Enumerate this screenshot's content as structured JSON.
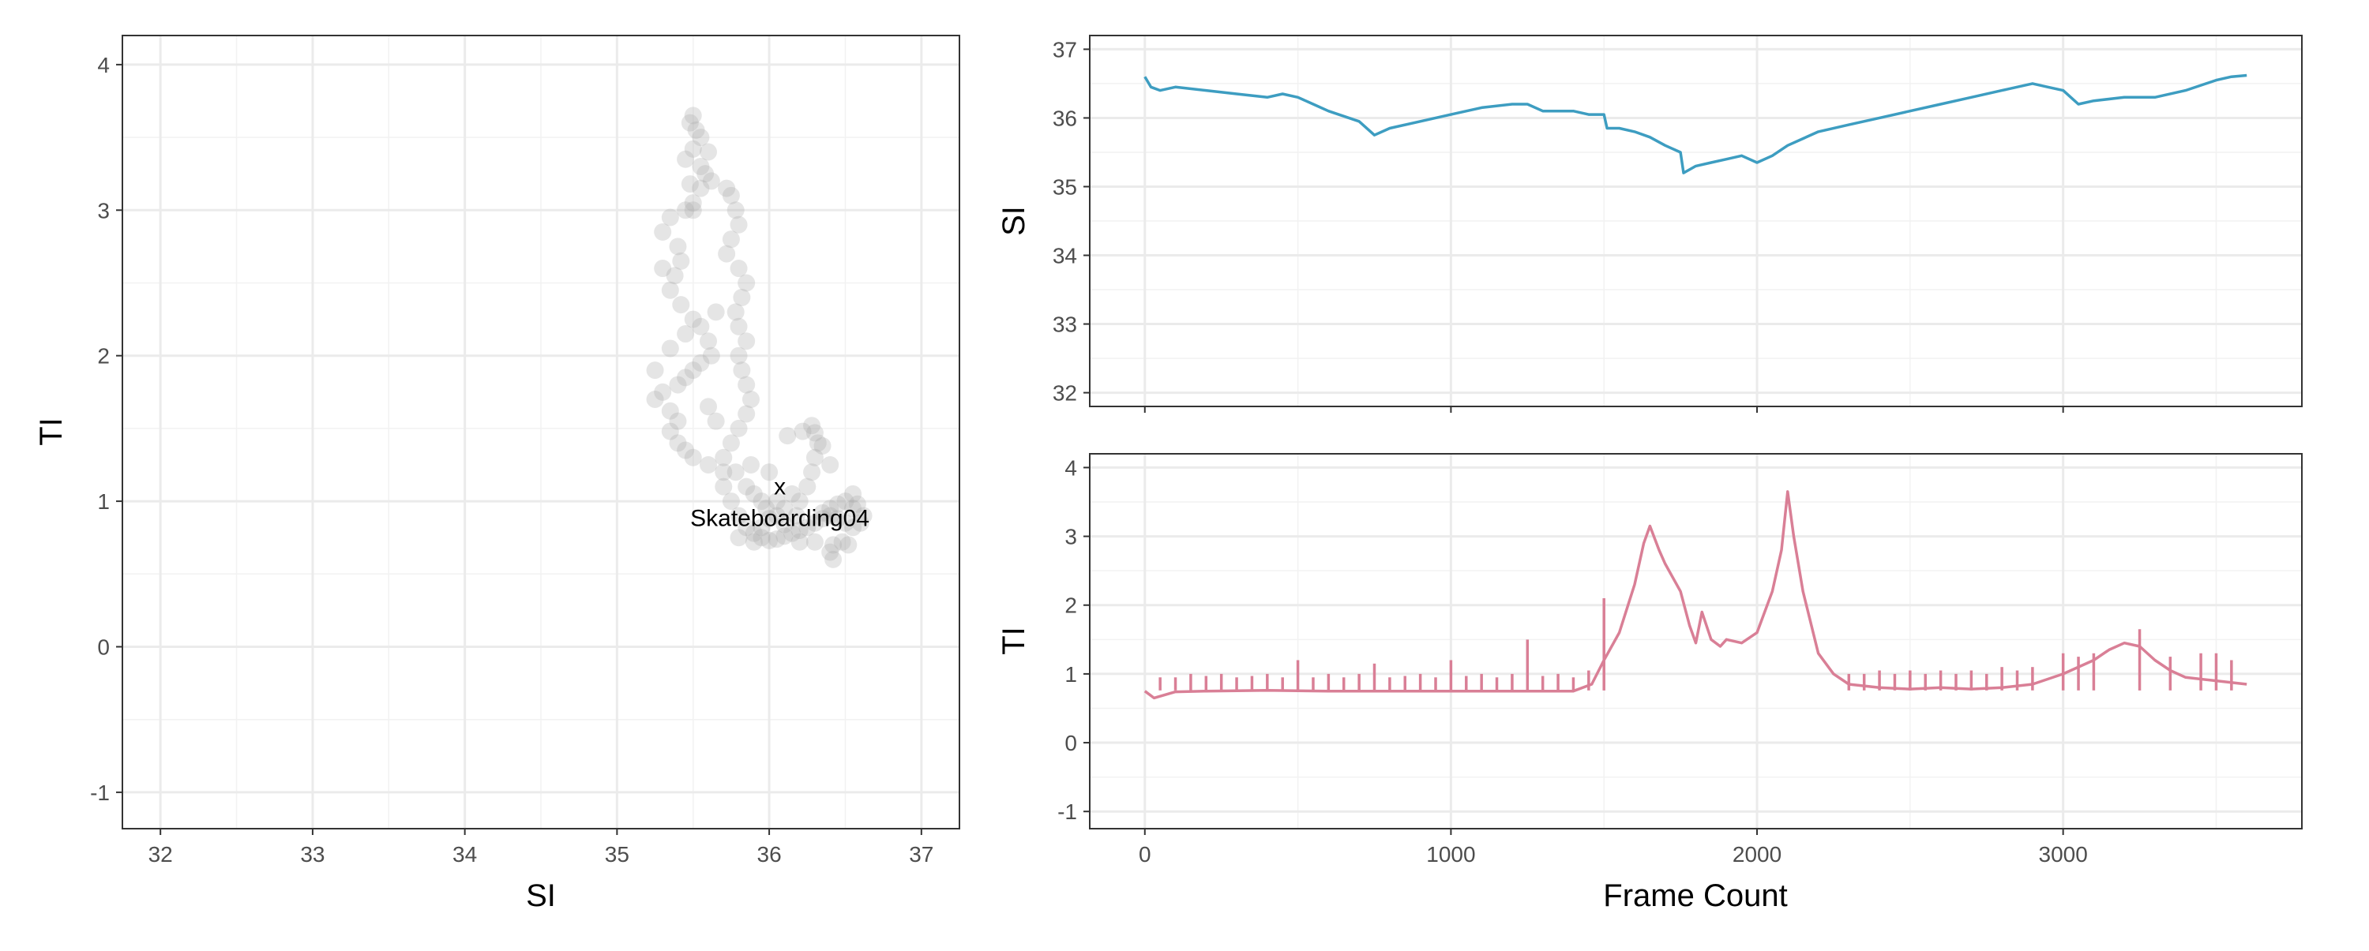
{
  "chart_data": [
    {
      "type": "scatter",
      "xlabel": "SI",
      "ylabel": "TI",
      "xlim": [
        31.75,
        37.25
      ],
      "ylim": [
        -1.25,
        4.2
      ],
      "x_ticks": [
        "32",
        "33",
        "34",
        "35",
        "36",
        "37"
      ],
      "y_ticks": [
        "-1",
        "0",
        "1",
        "2",
        "3",
        "4"
      ],
      "grid": true,
      "point_color": "#aaaaaa",
      "annotation": {
        "marker": "x",
        "label": "Skateboarding04",
        "x": 36.07,
        "y": 1.1
      },
      "points": [
        [
          35.5,
          3.65
        ],
        [
          35.48,
          3.6
        ],
        [
          35.52,
          3.55
        ],
        [
          35.55,
          3.5
        ],
        [
          35.5,
          3.42
        ],
        [
          35.45,
          3.35
        ],
        [
          35.58,
          3.25
        ],
        [
          35.62,
          3.2
        ],
        [
          35.55,
          3.15
        ],
        [
          35.5,
          3.05
        ],
        [
          35.45,
          3.0
        ],
        [
          35.35,
          2.95
        ],
        [
          35.3,
          2.85
        ],
        [
          35.4,
          2.75
        ],
        [
          35.42,
          2.65
        ],
        [
          35.38,
          2.55
        ],
        [
          35.35,
          2.45
        ],
        [
          35.42,
          2.35
        ],
        [
          35.5,
          2.25
        ],
        [
          35.55,
          2.2
        ],
        [
          35.6,
          2.1
        ],
        [
          35.62,
          2.0
        ],
        [
          35.55,
          1.95
        ],
        [
          35.5,
          1.9
        ],
        [
          35.45,
          1.85
        ],
        [
          35.4,
          1.8
        ],
        [
          35.3,
          1.75
        ],
        [
          35.25,
          1.7
        ],
        [
          35.35,
          1.62
        ],
        [
          35.4,
          1.55
        ],
        [
          35.35,
          1.48
        ],
        [
          35.4,
          1.4
        ],
        [
          35.45,
          1.35
        ],
        [
          35.5,
          1.3
        ],
        [
          35.6,
          1.25
        ],
        [
          35.7,
          1.2
        ],
        [
          35.72,
          3.15
        ],
        [
          35.75,
          3.1
        ],
        [
          35.78,
          3.0
        ],
        [
          35.8,
          2.9
        ],
        [
          35.75,
          2.8
        ],
        [
          35.72,
          2.7
        ],
        [
          35.8,
          2.6
        ],
        [
          35.85,
          2.5
        ],
        [
          35.82,
          2.4
        ],
        [
          35.78,
          2.3
        ],
        [
          35.8,
          2.2
        ],
        [
          35.85,
          2.1
        ],
        [
          35.8,
          2.0
        ],
        [
          35.82,
          1.9
        ],
        [
          35.85,
          1.8
        ],
        [
          35.88,
          1.7
        ],
        [
          35.85,
          1.6
        ],
        [
          35.8,
          1.5
        ],
        [
          35.75,
          1.4
        ],
        [
          35.7,
          1.3
        ],
        [
          35.78,
          1.2
        ],
        [
          35.85,
          1.1
        ],
        [
          35.9,
          1.05
        ],
        [
          35.95,
          1.0
        ],
        [
          35.75,
          1.0
        ],
        [
          35.8,
          0.9
        ],
        [
          35.85,
          0.82
        ],
        [
          35.9,
          0.78
        ],
        [
          35.95,
          0.75
        ],
        [
          36.0,
          0.73
        ],
        [
          36.05,
          0.74
        ],
        [
          36.1,
          0.76
        ],
        [
          36.15,
          0.78
        ],
        [
          36.2,
          0.8
        ],
        [
          36.25,
          0.82
        ],
        [
          36.3,
          0.85
        ],
        [
          36.35,
          0.88
        ],
        [
          36.4,
          0.9
        ],
        [
          36.45,
          0.88
        ],
        [
          36.5,
          0.85
        ],
        [
          36.55,
          0.82
        ],
        [
          36.6,
          0.85
        ],
        [
          36.62,
          0.9
        ],
        [
          36.55,
          0.95
        ],
        [
          36.5,
          1.0
        ],
        [
          36.45,
          0.98
        ],
        [
          36.4,
          0.95
        ],
        [
          36.35,
          0.92
        ],
        [
          36.2,
          1.0
        ],
        [
          36.25,
          1.1
        ],
        [
          36.28,
          1.2
        ],
        [
          36.3,
          1.3
        ],
        [
          36.32,
          1.4
        ],
        [
          36.3,
          1.47
        ],
        [
          36.35,
          1.38
        ],
        [
          36.4,
          1.25
        ],
        [
          36.15,
          1.05
        ],
        [
          36.1,
          0.95
        ],
        [
          36.05,
          0.9
        ],
        [
          36.0,
          0.88
        ],
        [
          35.98,
          0.95
        ],
        [
          36.05,
          1.0
        ],
        [
          36.42,
          0.7
        ],
        [
          36.4,
          0.65
        ],
        [
          36.42,
          0.6
        ],
        [
          36.48,
          0.72
        ],
        [
          36.52,
          0.7
        ],
        [
          36.2,
          0.72
        ],
        [
          36.3,
          0.72
        ],
        [
          35.9,
          0.72
        ],
        [
          35.8,
          0.75
        ],
        [
          35.95,
          0.82
        ],
        [
          36.1,
          0.84
        ],
        [
          36.18,
          0.9
        ],
        [
          36.55,
          1.05
        ],
        [
          36.58,
          0.98
        ],
        [
          35.65,
          1.55
        ],
        [
          35.6,
          1.65
        ],
        [
          35.25,
          1.9
        ],
        [
          35.35,
          2.05
        ],
        [
          35.45,
          2.15
        ],
        [
          35.3,
          2.6
        ],
        [
          35.5,
          3.0
        ],
        [
          35.6,
          3.4
        ],
        [
          35.55,
          3.3
        ],
        [
          35.48,
          3.18
        ],
        [
          35.65,
          2.3
        ],
        [
          35.7,
          1.1
        ],
        [
          36.0,
          1.2
        ],
        [
          35.88,
          1.25
        ],
        [
          36.12,
          1.45
        ],
        [
          36.22,
          1.48
        ],
        [
          36.28,
          1.52
        ]
      ]
    },
    {
      "type": "line",
      "xlabel": "",
      "ylabel": "SI",
      "xlim": [
        -180,
        3780
      ],
      "ylim": [
        31.8,
        37.2
      ],
      "y_ticks": [
        "32",
        "33",
        "34",
        "35",
        "36",
        "37"
      ],
      "grid": true,
      "color": "#3d9dc1",
      "x": [
        0,
        20,
        50,
        100,
        200,
        300,
        400,
        450,
        500,
        550,
        600,
        700,
        750,
        800,
        900,
        1000,
        1100,
        1200,
        1250,
        1300,
        1400,
        1450,
        1500,
        1510,
        1550,
        1600,
        1650,
        1700,
        1750,
        1760,
        1800,
        1850,
        1900,
        1950,
        2000,
        2050,
        2100,
        2150,
        2200,
        2300,
        2400,
        2500,
        2600,
        2700,
        2800,
        2900,
        2950,
        3000,
        3050,
        3100,
        3200,
        3300,
        3400,
        3500,
        3550,
        3600
      ],
      "values": [
        36.6,
        36.45,
        36.4,
        36.45,
        36.4,
        36.35,
        36.3,
        36.35,
        36.3,
        36.2,
        36.1,
        35.95,
        35.75,
        35.85,
        35.95,
        36.05,
        36.15,
        36.2,
        36.2,
        36.1,
        36.1,
        36.05,
        36.05,
        35.85,
        35.85,
        35.8,
        35.72,
        35.6,
        35.5,
        35.2,
        35.3,
        35.35,
        35.4,
        35.45,
        35.35,
        35.45,
        35.6,
        35.7,
        35.8,
        35.9,
        36.0,
        36.1,
        36.2,
        36.3,
        36.4,
        36.5,
        36.45,
        36.4,
        36.2,
        36.25,
        36.3,
        36.3,
        36.4,
        36.55,
        36.6,
        36.62
      ]
    },
    {
      "type": "line",
      "xlabel": "Frame Count",
      "ylabel": "TI",
      "xlim": [
        -180,
        3780
      ],
      "ylim": [
        -1.25,
        4.2
      ],
      "x_ticks": [
        "0",
        "1000",
        "2000",
        "3000"
      ],
      "y_ticks": [
        "-1",
        "0",
        "1",
        "2",
        "3",
        "4"
      ],
      "grid": true,
      "color": "#d97f96",
      "x": [
        0,
        30,
        100,
        200,
        400,
        600,
        800,
        1000,
        1200,
        1400,
        1460,
        1500,
        1550,
        1600,
        1630,
        1650,
        1680,
        1700,
        1750,
        1780,
        1800,
        1820,
        1850,
        1880,
        1900,
        1950,
        2000,
        2050,
        2080,
        2100,
        2120,
        2150,
        2200,
        2250,
        2300,
        2400,
        2500,
        2600,
        2700,
        2800,
        2900,
        3000,
        3100,
        3150,
        3200,
        3250,
        3300,
        3350,
        3400,
        3500,
        3600
      ],
      "values": [
        0.75,
        0.65,
        0.74,
        0.75,
        0.76,
        0.75,
        0.75,
        0.75,
        0.75,
        0.75,
        0.85,
        1.2,
        1.6,
        2.3,
        2.9,
        3.15,
        2.8,
        2.6,
        2.2,
        1.7,
        1.45,
        1.9,
        1.5,
        1.4,
        1.5,
        1.45,
        1.6,
        2.2,
        2.8,
        3.65,
        3.0,
        2.2,
        1.3,
        1.0,
        0.85,
        0.8,
        0.78,
        0.8,
        0.78,
        0.8,
        0.85,
        1.0,
        1.2,
        1.35,
        1.45,
        1.4,
        1.2,
        1.05,
        0.95,
        0.9,
        0.85
      ],
      "spikes": [
        [
          50,
          0.95
        ],
        [
          100,
          0.95
        ],
        [
          150,
          1.0
        ],
        [
          200,
          0.97
        ],
        [
          250,
          1.0
        ],
        [
          300,
          0.95
        ],
        [
          350,
          0.97
        ],
        [
          400,
          1.0
        ],
        [
          450,
          0.95
        ],
        [
          500,
          1.2
        ],
        [
          550,
          0.95
        ],
        [
          600,
          1.0
        ],
        [
          650,
          0.95
        ],
        [
          700,
          1.0
        ],
        [
          750,
          1.15
        ],
        [
          800,
          0.95
        ],
        [
          850,
          0.97
        ],
        [
          900,
          1.0
        ],
        [
          950,
          0.95
        ],
        [
          1000,
          1.2
        ],
        [
          1050,
          0.97
        ],
        [
          1100,
          1.0
        ],
        [
          1150,
          0.95
        ],
        [
          1200,
          1.0
        ],
        [
          1250,
          1.5
        ],
        [
          1300,
          0.97
        ],
        [
          1350,
          1.0
        ],
        [
          1400,
          0.95
        ],
        [
          1450,
          1.05
        ],
        [
          1500,
          2.1
        ],
        [
          2300,
          1.0
        ],
        [
          2350,
          1.0
        ],
        [
          2400,
          1.05
        ],
        [
          2450,
          1.0
        ],
        [
          2500,
          1.05
        ],
        [
          2550,
          1.0
        ],
        [
          2600,
          1.05
        ],
        [
          2650,
          1.0
        ],
        [
          2700,
          1.05
        ],
        [
          2750,
          1.0
        ],
        [
          2800,
          1.1
        ],
        [
          2850,
          1.05
        ],
        [
          2900,
          1.1
        ],
        [
          3000,
          1.3
        ],
        [
          3050,
          1.25
        ],
        [
          3100,
          1.3
        ],
        [
          3250,
          1.65
        ],
        [
          3350,
          1.25
        ],
        [
          3450,
          1.3
        ],
        [
          3500,
          1.3
        ],
        [
          3550,
          1.2
        ]
      ]
    }
  ]
}
